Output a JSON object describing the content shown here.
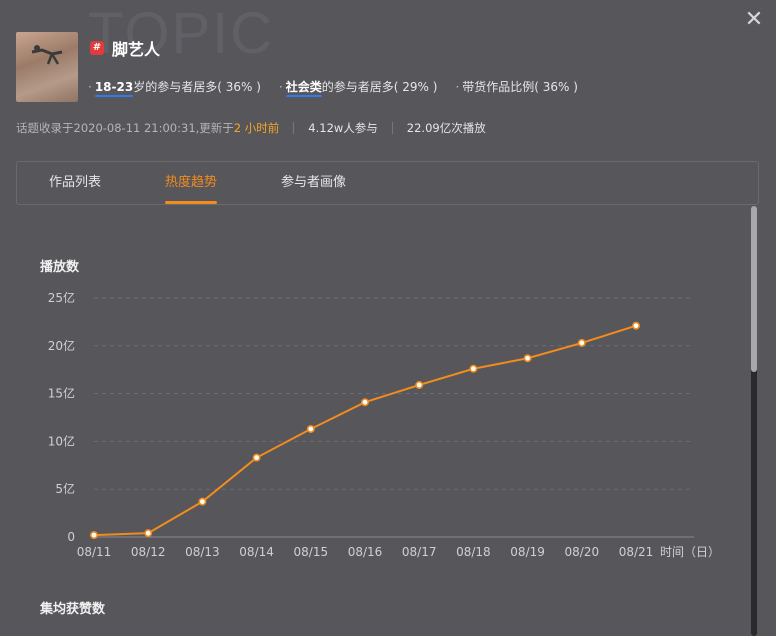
{
  "watermark": "TOPIC",
  "topic": {
    "name": "脚艺人",
    "hash_symbol": "#"
  },
  "stats": [
    {
      "highlight": "18-23",
      "text": "岁的参与者居多",
      "percent": "( 36% )"
    },
    {
      "highlight": "社会类",
      "text": "的参与者居多",
      "percent": "( 29% )"
    },
    {
      "highlight": "",
      "text": "带货作品比例",
      "percent": "( 36% )"
    }
  ],
  "meta": {
    "collected_prefix": "话题收录于2020-08-11 21:00:31,更新于",
    "updated": "2 小时前",
    "participants": "4.12w人参与",
    "plays": "22.09亿次播放"
  },
  "tabs": [
    "作品列表",
    "热度趋势",
    "参与者画像"
  ],
  "active_tab": 1,
  "colors": {
    "line": "#f28c1c",
    "accent": "#2d7cf0",
    "bg": "#57565b"
  },
  "chart_data": {
    "type": "line",
    "title": "播放数",
    "xlabel": "时间（日）",
    "ylabel": "",
    "x": [
      "08/11",
      "08/12",
      "08/13",
      "08/14",
      "08/15",
      "08/16",
      "08/17",
      "08/18",
      "08/19",
      "08/20",
      "08/21"
    ],
    "series": [
      {
        "values": [
          0.2,
          0.4,
          3.7,
          8.3,
          11.3,
          14.1,
          15.9,
          17.6,
          18.7,
          20.3,
          22.1
        ]
      }
    ],
    "ylim": [
      0,
      25
    ],
    "yticks": [
      {
        "value": 0,
        "label": "0"
      },
      {
        "value": 5,
        "label": "5亿"
      },
      {
        "value": 10,
        "label": "10亿"
      },
      {
        "value": 15,
        "label": "15亿"
      },
      {
        "value": 20,
        "label": "20亿"
      },
      {
        "value": 25,
        "label": "25亿"
      }
    ],
    "grid": true
  },
  "next_section_title": "集均获赞数"
}
